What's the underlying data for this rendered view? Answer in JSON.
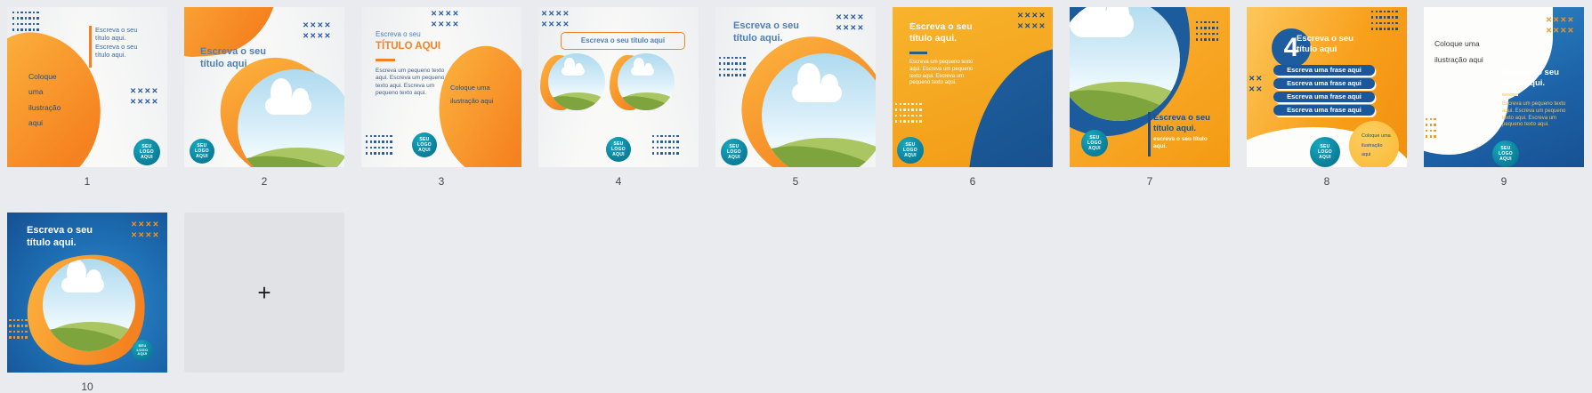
{
  "page": {
    "background": "#eaebef"
  },
  "labels": [
    "1",
    "2",
    "3",
    "4",
    "5",
    "6",
    "7",
    "8",
    "9",
    "10"
  ],
  "logo": {
    "l1": "SEU",
    "l2": "LOGO",
    "l3": "AQUI"
  },
  "strings": {
    "title": "Escreva o seu título aqui.",
    "title_nodot": "Escreva o seu título aqui",
    "title_repeat": "Escreva o seu título aqui. Escreva o seu título aqui.",
    "small_text": "Escreva um pequeno texto aqui. Escreva um pequeno texto aqui. Escreva um pequeno texto aqui.",
    "illustration": "Coloque uma ilustração aqui",
    "t3_top": "Escreva o seu",
    "t3_main": "TÍTULO AQUI",
    "t7_sub": "escreva o seu título aqui.",
    "t8_number": "4",
    "t8_pill": "Escreva uma frase aqui",
    "add_plus": "+"
  },
  "icons": {
    "x_mark": "✕",
    "dot": "■",
    "plus": "+"
  },
  "colors": {
    "page_bg": "#eaebef",
    "tile_bg_light": "#f9f9f8",
    "orange": "#f7941e",
    "orange_deep": "#f58220",
    "navy": "#2a5b9e",
    "navy_text": "#1d4e87",
    "title_blue": "#4d7fb5",
    "logo_teal": "#0d86a0",
    "blue_bg": "#1d63a8",
    "blue_blob": "#1d5c9c",
    "green_light": "#aac662",
    "green_dark": "#7da43d",
    "yellow_body": "#f9c14a",
    "add_tile_bg": "#e0e2e6"
  }
}
